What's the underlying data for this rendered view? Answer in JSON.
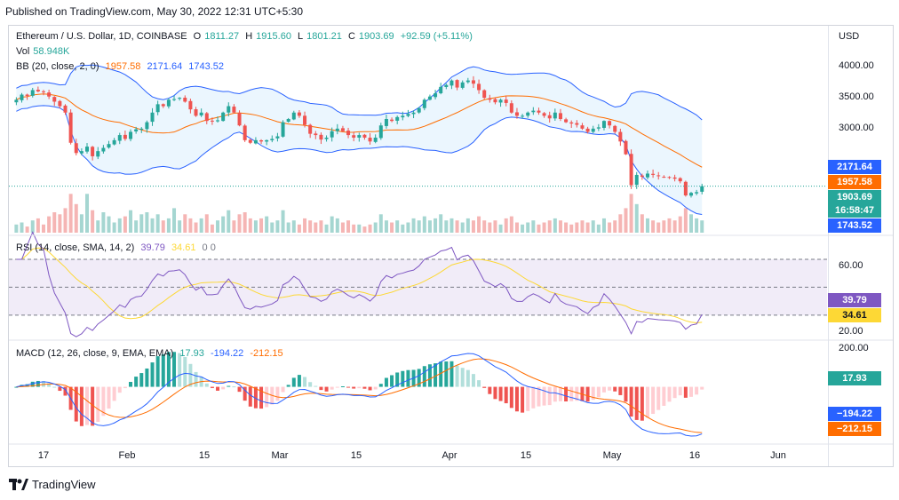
{
  "publisher_line": "Published on TradingView.com, May 30, 2022 12:31 UTC+5:30",
  "header": {
    "symbol": "Ethereum / U.S. Dollar, 1D, COINBASE",
    "open_label": "O",
    "open": "1811.27",
    "high_label": "H",
    "high": "1915.60",
    "low_label": "L",
    "low": "1801.21",
    "close_label": "C",
    "close": "1903.69",
    "change": "+92.59 (+5.11%)",
    "vol_label": "Vol",
    "vol": "58.948K",
    "bb_label": "BB (20, close, 2, 0)",
    "bb_mid": "1957.58",
    "bb_upper": "2171.64",
    "bb_lower": "1743.52",
    "rsi_label": "RSI (14, close, SMA, 14, 2)",
    "rsi_val": "39.79",
    "rsi_sma": "34.61",
    "rsi_extra": "0 0",
    "macd_label": "MACD (12, 26, close, 9, EMA, EMA)",
    "macd_hist": "17.93",
    "macd_line": "-194.22",
    "macd_signal": "-212.15"
  },
  "currency": "USD",
  "logo_text": "TradingView",
  "colors": {
    "up": "#26a69a",
    "down": "#ef5350",
    "bb_line": "#2962ff",
    "bb_mid": "#ff6d00",
    "bb_fill": "#e3f2fd",
    "rsi": "#7e57c2",
    "rsi_sma": "#fdd835",
    "rsi_zone": "#ede7f6"
  },
  "price_axis_labels": [
    "4000.00",
    "3500.00",
    "3000.00"
  ],
  "rsi_axis_labels": [
    "60.00",
    "20.00"
  ],
  "macd_axis_labels": [
    "200.00"
  ],
  "badges": {
    "bb_upper": "2171.64",
    "bb_mid": "1957.58",
    "last_price": "1903.69",
    "countdown": "16:58:47",
    "bb_lower": "1743.52",
    "rsi": "39.79",
    "rsi_sma": "34.61",
    "macd_hist": "17.93",
    "macd_line": "−194.22",
    "macd_signal": "−212.15"
  },
  "x_axis_labels": [
    "17",
    "Feb",
    "15",
    "Mar",
    "15",
    "Apr",
    "15",
    "May",
    "16",
    "Jun"
  ],
  "chart_data": {
    "type": "candlestick",
    "symbol": "Ethereum / U.S. Dollar",
    "timeframe": "1D",
    "price_panel": {
      "ylim": [
        1650,
        4250
      ],
      "gridlines": [
        4000,
        3500,
        3000
      ]
    },
    "close_path": [
      3250,
      3330,
      3310,
      3400,
      3380,
      3370,
      3300,
      3220,
      3150,
      3050,
      2580,
      2420,
      2450,
      2520,
      2370,
      2450,
      2500,
      2560,
      2620,
      2700,
      2640,
      2750,
      2790,
      2800,
      2900,
      3050,
      3180,
      3150,
      3250,
      3260,
      3280,
      3220,
      3100,
      3000,
      3050,
      2920,
      2920,
      2930,
      3050,
      3150,
      3050,
      2850,
      2620,
      2580,
      2620,
      2600,
      2620,
      2640,
      2680,
      2900,
      2950,
      3050,
      3000,
      2860,
      2720,
      2700,
      2630,
      2660,
      2760,
      2800,
      2760,
      2700,
      2660,
      2700,
      2660,
      2600,
      2660,
      2850,
      2950,
      2920,
      2980,
      3000,
      3030,
      3050,
      3120,
      3250,
      3300,
      3350,
      3450,
      3480,
      3550,
      3440,
      3520,
      3550,
      3500,
      3400,
      3280,
      3250,
      3210,
      3250,
      3200,
      3050,
      3000,
      3000,
      3050,
      3080,
      3050,
      3000,
      2960,
      3050,
      2950,
      2900,
      2880,
      2860,
      2800,
      2750,
      2800,
      2820,
      2920,
      2850,
      2750,
      2600,
      2400,
      1920,
      2080,
      2050,
      2100,
      2080,
      2060,
      2050,
      2040,
      2020,
      1980,
      1760,
      1800,
      1811,
      1904
    ],
    "volume_relative": [
      0.2,
      0.25,
      0.15,
      0.3,
      0.35,
      0.2,
      0.4,
      0.5,
      0.45,
      0.6,
      0.95,
      0.7,
      0.45,
      0.95,
      0.55,
      0.3,
      0.5,
      0.4,
      0.25,
      0.35,
      0.4,
      0.55,
      0.3,
      0.45,
      0.5,
      0.35,
      0.45,
      0.3,
      0.35,
      0.6,
      0.3,
      0.45,
      0.35,
      0.25,
      0.35,
      0.45,
      0.2,
      0.3,
      0.4,
      0.55,
      0.3,
      0.45,
      0.5,
      0.35,
      0.3,
      0.35,
      0.4,
      0.25,
      0.3,
      0.55,
      0.25,
      0.3,
      0.2,
      0.35,
      0.3,
      0.25,
      0.3,
      0.2,
      0.4,
      0.35,
      0.25,
      0.3,
      0.2,
      0.2,
      0.15,
      0.2,
      0.25,
      0.45,
      0.3,
      0.25,
      0.3,
      0.2,
      0.25,
      0.35,
      0.3,
      0.4,
      0.3,
      0.35,
      0.45,
      0.3,
      0.35,
      0.3,
      0.25,
      0.35,
      0.3,
      0.4,
      0.3,
      0.25,
      0.3,
      0.2,
      0.35,
      0.4,
      0.25,
      0.2,
      0.25,
      0.3,
      0.2,
      0.25,
      0.3,
      0.35,
      0.3,
      0.25,
      0.2,
      0.25,
      0.3,
      0.25,
      0.3,
      0.2,
      0.35,
      0.25,
      0.3,
      0.45,
      0.6,
      0.95,
      0.7,
      0.45,
      0.35,
      0.3,
      0.25,
      0.3,
      0.35,
      0.3,
      0.4,
      0.6,
      0.45,
      0.35,
      0.3
    ],
    "rsi_panel": {
      "ylim": [
        14,
        84
      ],
      "bands": [
        70,
        30
      ],
      "gridlines": [
        60,
        20
      ],
      "last_rsi": 39.79,
      "last_sma": 34.61
    },
    "macd_panel": {
      "ylim": [
        -300,
        230
      ],
      "gridlines": [
        200
      ],
      "last_hist": 17.93,
      "last_macd": -194.22,
      "last_signal": -212.15
    },
    "x_tick_labels": [
      "17",
      "Feb",
      "15",
      "Mar",
      "15",
      "Apr",
      "15",
      "May",
      "16",
      "Jun"
    ],
    "x_tick_days": [
      0,
      15,
      29,
      44,
      58,
      75,
      89,
      105,
      120,
      135
    ],
    "first_bar_day": -5,
    "grid": false
  }
}
